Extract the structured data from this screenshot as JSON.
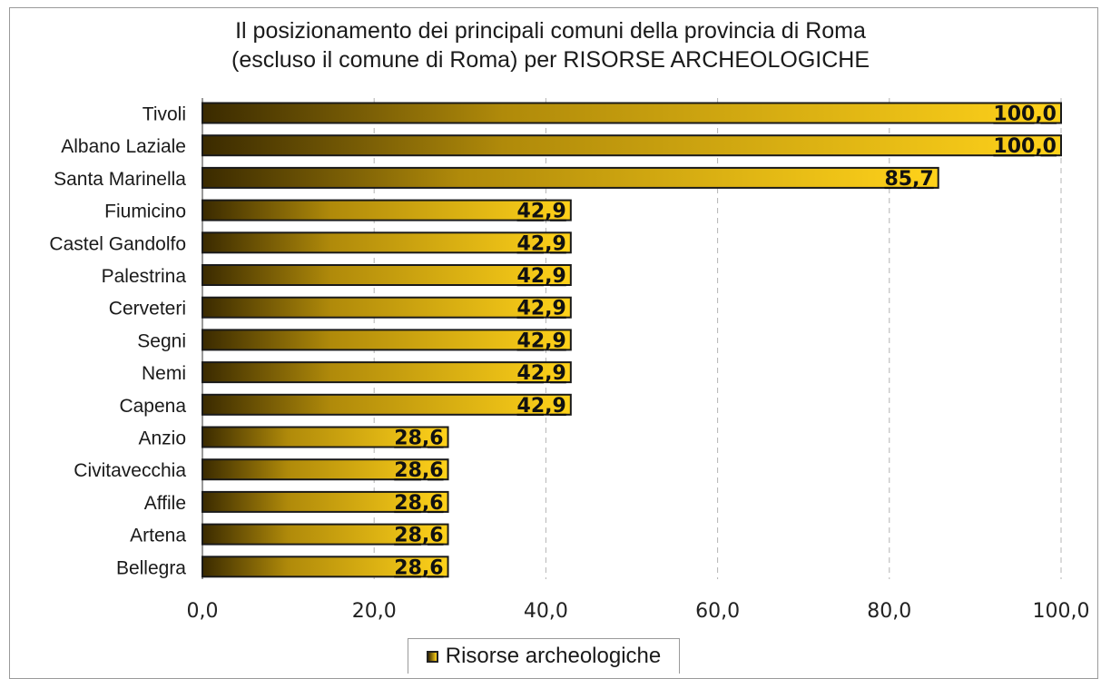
{
  "chart_data": {
    "type": "bar",
    "orientation": "horizontal",
    "title": "Il posizionamento dei principali comuni della provincia di Roma (escluso il comune di Roma) per RISORSE ARCHEOLOGICHE",
    "title_lines": [
      "Il posizionamento dei principali comuni della provincia di Roma",
      "(escluso il comune di Roma) per RISORSE ARCHEOLOGICHE"
    ],
    "categories": [
      "Tivoli",
      "Albano Laziale",
      "Santa Marinella",
      "Fiumicino",
      "Castel Gandolfo",
      "Palestrina",
      "Cerveteri",
      "Segni",
      "Nemi",
      "Capena",
      "Anzio",
      "Civitavecchia",
      "Affile",
      "Artena",
      "Bellegra"
    ],
    "series": [
      {
        "name": "Risorse archeologiche",
        "values": [
          100.0,
          100.0,
          85.7,
          42.9,
          42.9,
          42.9,
          42.9,
          42.9,
          42.9,
          42.9,
          28.6,
          28.6,
          28.6,
          28.6,
          28.6
        ],
        "value_labels": [
          "100,0",
          "100,0",
          "85,7",
          "42,9",
          "42,9",
          "42,9",
          "42,9",
          "42,9",
          "42,9",
          "42,9",
          "28,6",
          "28,6",
          "28,6",
          "28,6",
          "28,6"
        ]
      }
    ],
    "xlim": [
      0,
      100
    ],
    "x_ticks": [
      0,
      20,
      40,
      60,
      80,
      100
    ],
    "x_tick_labels": [
      "0,0",
      "20,0",
      "40,0",
      "60,0",
      "80,0",
      "100,0"
    ],
    "grid": "vertical-dashed",
    "legend_position": "bottom",
    "colors": {
      "bar_start": "#3a2a00",
      "bar_end": "#ffd21a",
      "bar_border": "#1a1a1a",
      "grid": "#b4b4b4"
    }
  }
}
